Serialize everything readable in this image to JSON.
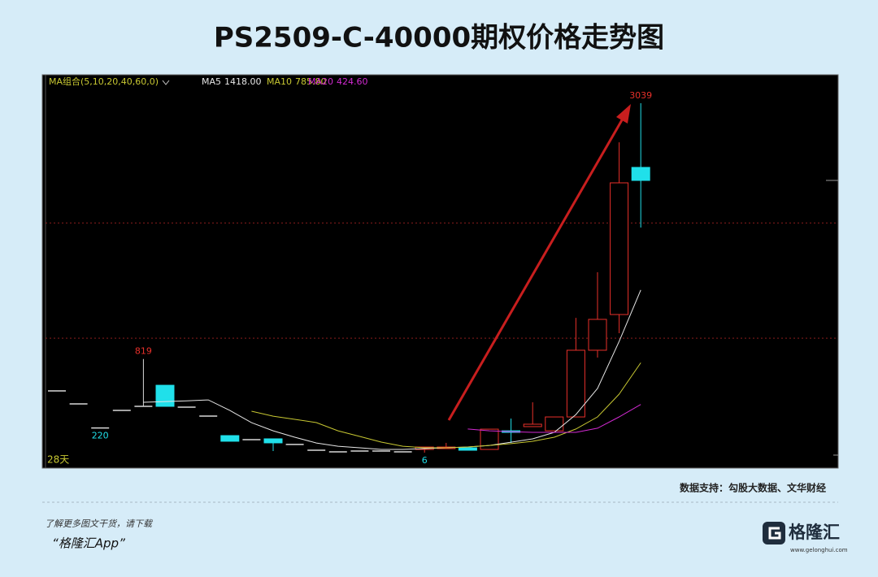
{
  "header": {
    "title": "PS2509-C-40000期权价格走势图"
  },
  "chart_data": {
    "type": "candlestick",
    "indicator": "MA组合(5,10,20,40,60,0)",
    "period_label": "28天",
    "ylim": [
      -121,
      3279
    ],
    "gridlines": [
      1000,
      2000
    ],
    "grid_color": "#8a1c1c",
    "up_color": "#e8302a",
    "down_color": "#20e0ea",
    "flat_color": "#d8d8d8",
    "candles": {
      "open": [
        542,
        429,
        220,
        373,
        408,
        591,
        401,
        323,
        154,
        119,
        126,
        77,
        27,
        13,
        20,
        20,
        13,
        34,
        41,
        48,
        34,
        196,
        232,
        196,
        316,
        895,
        1205,
        2482
      ],
      "close": [
        542,
        429,
        220,
        373,
        408,
        408,
        401,
        323,
        105,
        119,
        91,
        77,
        27,
        13,
        20,
        20,
        13,
        55,
        55,
        27,
        210,
        182,
        253,
        316,
        895,
        1163,
        2348,
        2369
      ],
      "high": [
        542,
        429,
        220,
        373,
        819,
        591,
        401,
        323,
        154,
        119,
        126,
        77,
        27,
        13,
        20,
        20,
        13,
        55,
        91,
        48,
        210,
        302,
        443,
        316,
        1176,
        1572,
        2700,
        3039
      ],
      "low": [
        542,
        429,
        220,
        373,
        408,
        408,
        401,
        323,
        105,
        119,
        20,
        77,
        27,
        13,
        20,
        20,
        13,
        6,
        41,
        27,
        34,
        91,
        232,
        196,
        316,
        831,
        1043,
        1960
      ]
    },
    "high_low_labels": [
      819,
      3039,
      220,
      6
    ],
    "series": [
      {
        "name": "MA5",
        "color": "#e6e6e6",
        "legend_label": "1418.00",
        "values": [
          null,
          null,
          null,
          null,
          443,
          450,
          455,
          464,
          372,
          266,
          196,
          140,
          90,
          62,
          48,
          34,
          34,
          41,
          48,
          55,
          69,
          97,
          126,
          182,
          337,
          563,
          972,
          1418
        ]
      },
      {
        "name": "MA10",
        "color": "#c8c832",
        "legend_label": "785.80",
        "values": [
          null,
          null,
          null,
          null,
          null,
          null,
          null,
          null,
          null,
          366,
          323,
          295,
          267,
          196,
          147,
          98,
          62,
          48,
          48,
          55,
          69,
          84,
          105,
          140,
          211,
          316,
          514,
          785.8
        ]
      },
      {
        "name": "MA20",
        "color": "#d22ad2",
        "legend_label": "424.60",
        "values": [
          null,
          null,
          null,
          null,
          null,
          null,
          null,
          null,
          null,
          null,
          null,
          null,
          null,
          null,
          null,
          null,
          null,
          null,
          null,
          211,
          196,
          189,
          182,
          182,
          182,
          218,
          316,
          424.6
        ]
      }
    ]
  },
  "footer": {
    "source": "数据支持：勾股大数据、文华财经",
    "promo": "了解更多图文干货，请下载",
    "app": "“格隆汇App”",
    "brand": "格隆汇",
    "site": "www.gelonghui.com"
  }
}
